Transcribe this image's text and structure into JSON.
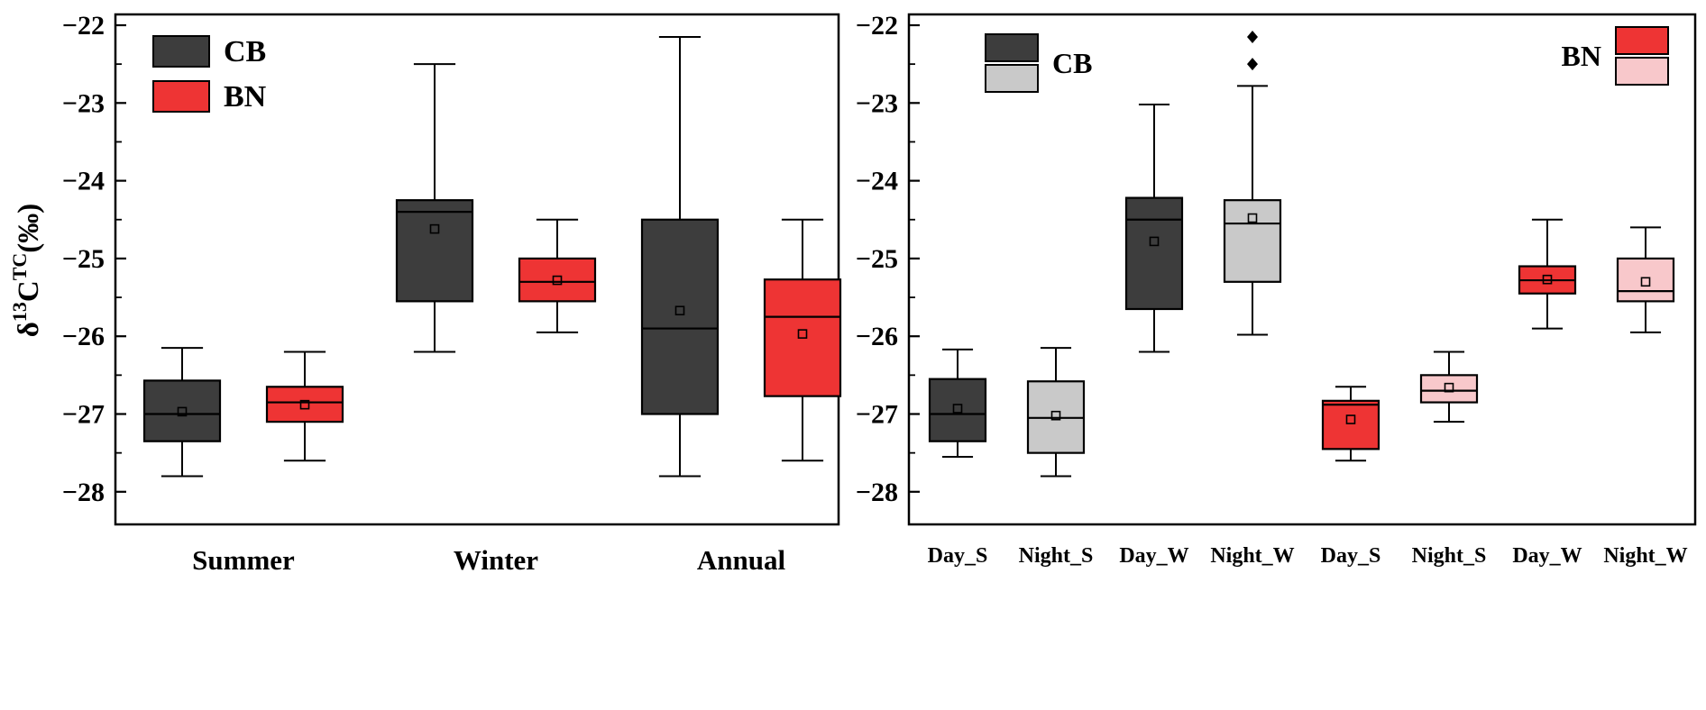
{
  "figure": {
    "ylabel_parts": {
      "base": "δ",
      "sup1": "13",
      "mid": "C",
      "sup2": "TC",
      "unit": "(‰)"
    },
    "colors": {
      "cb_dark": "#3d3d3d",
      "cb_light": "#c9c9c9",
      "bn_red": "#ee3434",
      "bn_pink": "#f8c8cb",
      "axis": "#000000"
    }
  },
  "chart_data": [
    {
      "type": "box",
      "panel": "left",
      "title": "",
      "ylabel": "δ13CTC(‰)",
      "ylim": [
        -28.4,
        -21.9
      ],
      "yticks": [
        -22,
        -23,
        -24,
        -25,
        -26,
        -27,
        -28
      ],
      "minor_tick_step": 0.5,
      "grid": false,
      "legend_position": "top-left",
      "categories": [
        "Summer",
        "Winter",
        "Annual"
      ],
      "legend": [
        {
          "label": "CB",
          "swatches": [
            "cb_dark"
          ]
        },
        {
          "label": "BN",
          "swatches": [
            "bn_red"
          ]
        }
      ],
      "boxes": [
        {
          "category": "Summer",
          "series": "CB",
          "color": "cb_dark",
          "whisker_low": -27.8,
          "q1": -27.35,
          "median": -27.0,
          "mean": -26.97,
          "q3": -26.57,
          "whisker_high": -26.15,
          "outliers": []
        },
        {
          "category": "Summer",
          "series": "BN",
          "color": "bn_red",
          "whisker_low": -27.6,
          "q1": -27.1,
          "median": -26.85,
          "mean": -26.88,
          "q3": -26.65,
          "whisker_high": -26.2,
          "outliers": []
        },
        {
          "category": "Winter",
          "series": "CB",
          "color": "cb_dark",
          "whisker_low": -26.2,
          "q1": -25.55,
          "median": -24.4,
          "mean": -24.62,
          "q3": -24.25,
          "whisker_high": -22.5,
          "outliers": []
        },
        {
          "category": "Winter",
          "series": "BN",
          "color": "bn_red",
          "whisker_low": -25.95,
          "q1": -25.55,
          "median": -25.3,
          "mean": -25.28,
          "q3": -25.0,
          "whisker_high": -24.5,
          "outliers": []
        },
        {
          "category": "Annual",
          "series": "CB",
          "color": "cb_dark",
          "whisker_low": -27.8,
          "q1": -27.0,
          "median": -25.9,
          "mean": -25.67,
          "q3": -24.5,
          "whisker_high": -22.15,
          "outliers": []
        },
        {
          "category": "Annual",
          "series": "BN",
          "color": "bn_red",
          "whisker_low": -27.6,
          "q1": -26.77,
          "median": -25.75,
          "mean": -25.97,
          "q3": -25.27,
          "whisker_high": -24.5,
          "outliers": []
        }
      ]
    },
    {
      "type": "box",
      "panel": "right",
      "title": "",
      "ylim": [
        -28.4,
        -21.9
      ],
      "yticks": [
        -22,
        -23,
        -24,
        -25,
        -26,
        -27,
        -28
      ],
      "minor_tick_step": 0.5,
      "grid": false,
      "categories": [
        "Day_S",
        "Night_S",
        "Day_W",
        "Night_W",
        "Day_S",
        "Night_S",
        "Day_W",
        "Night_W"
      ],
      "legend": [
        {
          "label": "CB",
          "swatches": [
            "cb_dark",
            "cb_light"
          ],
          "position": "top-left"
        },
        {
          "label": "BN",
          "swatches": [
            "bn_red",
            "bn_pink"
          ],
          "position": "top-right"
        }
      ],
      "boxes": [
        {
          "category": "Day_S",
          "series": "CB_day",
          "color": "cb_dark",
          "whisker_low": -27.55,
          "q1": -27.35,
          "median": -27.0,
          "mean": -26.93,
          "q3": -26.55,
          "whisker_high": -26.17,
          "outliers": []
        },
        {
          "category": "Night_S",
          "series": "CB_night",
          "color": "cb_light",
          "whisker_low": -27.8,
          "q1": -27.5,
          "median": -27.05,
          "mean": -27.02,
          "q3": -26.58,
          "whisker_high": -26.15,
          "outliers": []
        },
        {
          "category": "Day_W",
          "series": "CB_day",
          "color": "cb_dark",
          "whisker_low": -26.2,
          "q1": -25.65,
          "median": -24.5,
          "mean": -24.78,
          "q3": -24.22,
          "whisker_high": -23.02,
          "outliers": []
        },
        {
          "category": "Night_W",
          "series": "CB_night",
          "color": "cb_light",
          "whisker_low": -25.98,
          "q1": -25.3,
          "median": -24.55,
          "mean": -24.48,
          "q3": -24.25,
          "whisker_high": -22.78,
          "outliers": [
            -22.5,
            -22.15
          ]
        },
        {
          "category": "Day_S",
          "series": "BN_day",
          "color": "bn_red",
          "whisker_low": -27.6,
          "q1": -27.45,
          "median": -26.88,
          "mean": -27.07,
          "q3": -26.83,
          "whisker_high": -26.65,
          "outliers": []
        },
        {
          "category": "Night_S",
          "series": "BN_night",
          "color": "bn_pink",
          "whisker_low": -27.1,
          "q1": -26.85,
          "median": -26.7,
          "mean": -26.66,
          "q3": -26.5,
          "whisker_high": -26.2,
          "outliers": []
        },
        {
          "category": "Day_W",
          "series": "BN_day",
          "color": "bn_red",
          "whisker_low": -25.9,
          "q1": -25.45,
          "median": -25.28,
          "mean": -25.27,
          "q3": -25.1,
          "whisker_high": -24.5,
          "outliers": []
        },
        {
          "category": "Night_W",
          "series": "BN_night",
          "color": "bn_pink",
          "whisker_low": -25.95,
          "q1": -25.55,
          "median": -25.42,
          "mean": -25.3,
          "q3": -25.0,
          "whisker_high": -24.6,
          "outliers": []
        }
      ]
    }
  ]
}
